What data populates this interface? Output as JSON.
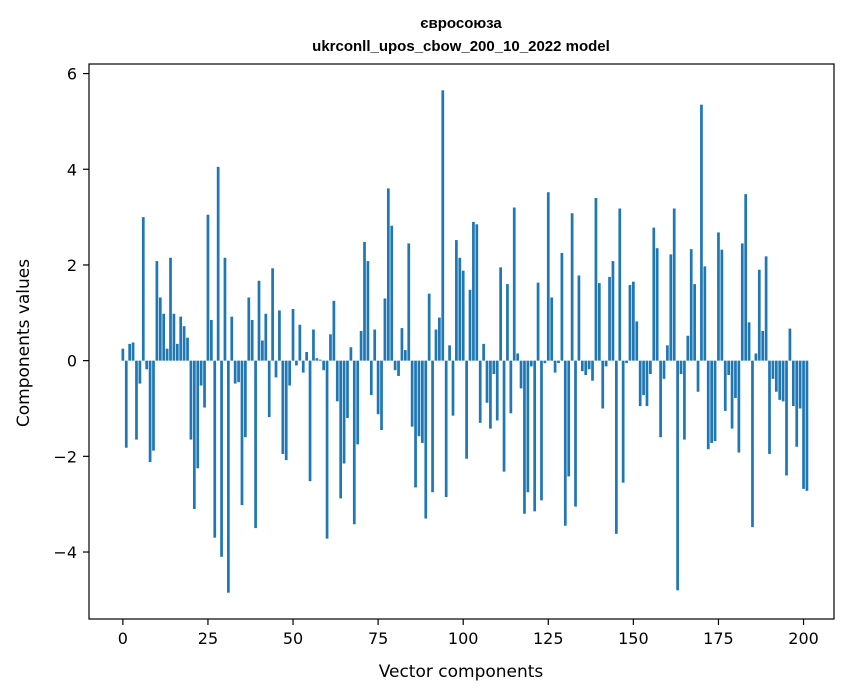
{
  "chart_data": {
    "type": "bar",
    "title_line1": "євросоюза",
    "title_line2": "ukrconll_upos_cbow_200_10_2022 model",
    "xlabel": "Vector components",
    "ylabel": "Components values",
    "xlim": [
      -9.95,
      208.95
    ],
    "ylim": [
      -5.4,
      6.2
    ],
    "xticks": [
      0,
      25,
      50,
      75,
      100,
      125,
      150,
      175,
      200
    ],
    "yticks": [
      -4,
      -2,
      0,
      2,
      4,
      6
    ],
    "ytick_labels": [
      "−4",
      "−2",
      "0",
      "2",
      "4",
      "6"
    ],
    "bar_color": "#1f77b4",
    "grid": false,
    "values": [
      0.25,
      -1.82,
      0.35,
      0.38,
      -1.65,
      -0.48,
      3.0,
      -0.18,
      -2.12,
      -1.88,
      2.08,
      1.32,
      0.98,
      0.25,
      2.15,
      0.98,
      0.35,
      0.92,
      0.72,
      0.48,
      -1.65,
      -3.1,
      -2.25,
      -0.52,
      -0.98,
      3.05,
      0.85,
      -3.7,
      4.05,
      -4.1,
      2.15,
      -4.85,
      0.92,
      -0.48,
      -0.45,
      -3.02,
      -1.6,
      1.32,
      0.85,
      -3.5,
      1.67,
      0.42,
      0.98,
      -1.18,
      1.93,
      -0.35,
      1.05,
      -1.95,
      -2.08,
      -0.52,
      1.08,
      -0.1,
      0.75,
      -0.25,
      0.18,
      -2.52,
      0.65,
      0.05,
      0.02,
      -0.2,
      -3.72,
      0.55,
      1.25,
      -0.85,
      -2.88,
      -2.15,
      -1.2,
      0.28,
      -3.42,
      -1.75,
      0.62,
      2.48,
      2.08,
      -0.72,
      0.65,
      -1.12,
      -1.45,
      1.3,
      3.6,
      2.82,
      -0.2,
      -0.32,
      0.68,
      0.22,
      2.45,
      -1.38,
      -2.65,
      -1.58,
      -1.72,
      -3.3,
      1.4,
      -2.75,
      0.65,
      0.9,
      5.65,
      -2.85,
      0.32,
      -1.15,
      2.52,
      2.15,
      1.88,
      -2.05,
      1.48,
      2.9,
      2.85,
      -1.3,
      0.35,
      -0.88,
      -1.42,
      -0.28,
      -1.25,
      1.95,
      -2.32,
      1.6,
      -1.1,
      3.2,
      0.15,
      -0.58,
      -3.2,
      -2.75,
      -0.12,
      -3.15,
      1.63,
      -2.92,
      -0.05,
      3.52,
      1.32,
      -0.25,
      -0.05,
      2.25,
      -3.45,
      -2.42,
      3.08,
      -3.05,
      1.78,
      -0.22,
      -0.3,
      -0.18,
      -0.42,
      3.4,
      1.62,
      -1.0,
      -0.12,
      1.75,
      2.08,
      -3.62,
      3.18,
      -2.55,
      -0.05,
      1.58,
      1.65,
      0.82,
      -0.95,
      -0.72,
      -0.95,
      -0.28,
      2.78,
      2.35,
      -1.6,
      -0.38,
      0.32,
      2.22,
      3.18,
      -4.8,
      -0.28,
      -1.65,
      0.52,
      2.33,
      1.6,
      -0.65,
      5.35,
      1.97,
      -1.85,
      -1.72,
      -1.68,
      2.68,
      2.32,
      -1.05,
      -0.3,
      -1.42,
      -0.78,
      -1.92,
      2.45,
      3.48,
      0.8,
      -3.48,
      0.15,
      1.9,
      0.62,
      2.18,
      -1.95,
      -0.38,
      -0.65,
      -0.82,
      -0.85,
      -2.4,
      0.67,
      -0.95,
      -1.8,
      -1.0,
      -2.68,
      -2.72
    ]
  }
}
